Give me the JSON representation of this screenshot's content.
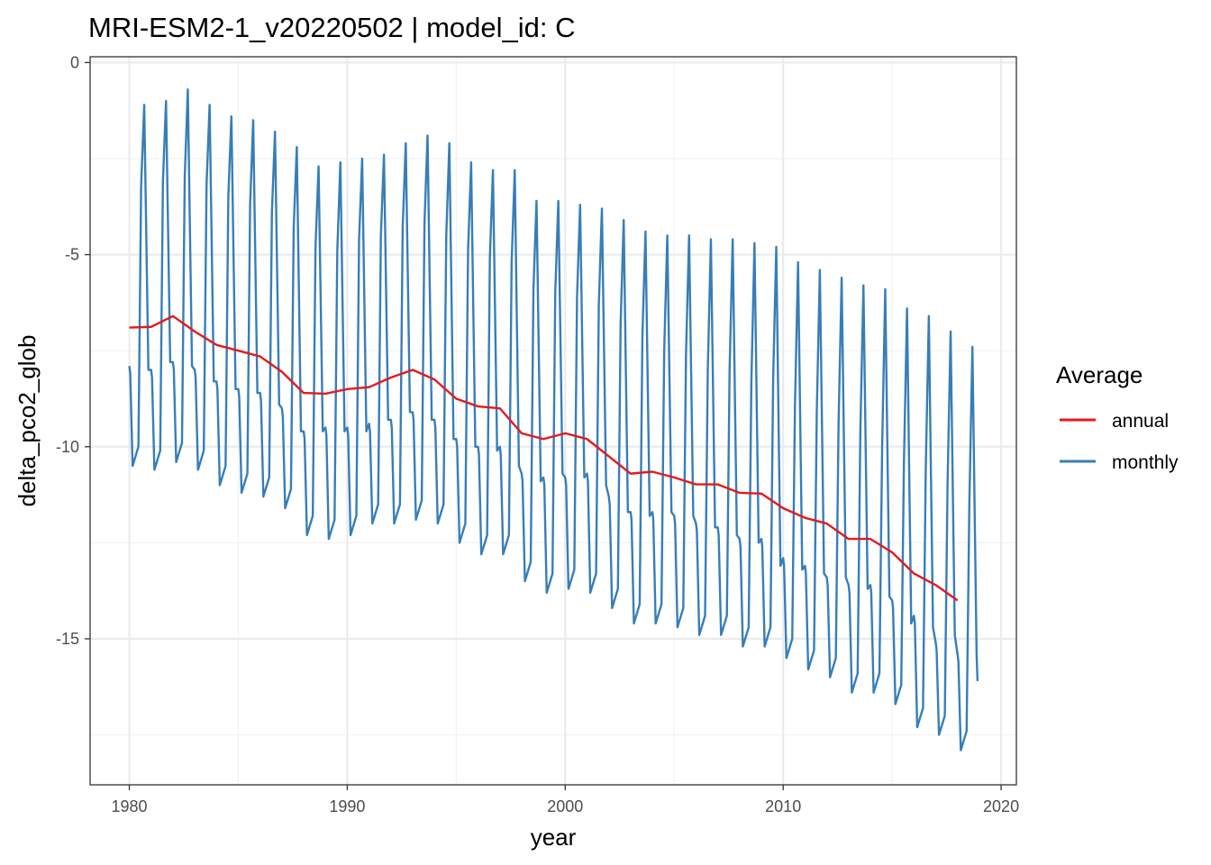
{
  "chart_data": {
    "type": "line",
    "title": "MRI-ESM2-1_v20220502 | model_id: C",
    "xlabel": "year",
    "ylabel": "delta_pco2_glob",
    "xlim": [
      1978.2,
      2020.7
    ],
    "ylim": [
      -18.8,
      0.15
    ],
    "x_ticks": [
      1980,
      1990,
      2000,
      2010,
      2020
    ],
    "y_ticks": [
      0,
      -5,
      -10,
      -15
    ],
    "x_tick_labels": [
      "1980",
      "1990",
      "2000",
      "2010",
      "2020"
    ],
    "y_tick_labels": [
      "0",
      "-5",
      "-10",
      "-15"
    ],
    "grid": true,
    "legend": {
      "title": "Average",
      "position": "right",
      "entries": [
        {
          "label": "annual",
          "color": "#e41a1c"
        },
        {
          "label": "monthly",
          "color": "#377eb8"
        }
      ]
    },
    "series": [
      {
        "name": "annual",
        "color": "#e41a1c",
        "x": [
          1980,
          1981,
          1982,
          1983,
          1984,
          1985,
          1986,
          1987,
          1988,
          1989,
          1990,
          1991,
          1992,
          1993,
          1994,
          1995,
          1996,
          1997,
          1998,
          1999,
          2000,
          2001,
          2002,
          2003,
          2004,
          2005,
          2006,
          2007,
          2008,
          2009,
          2010,
          2011,
          2012,
          2013,
          2014,
          2015,
          2016,
          2017,
          2018
        ],
        "y": [
          -6.9,
          -6.88,
          -6.6,
          -7.0,
          -7.35,
          -7.5,
          -7.65,
          -8.05,
          -8.6,
          -8.62,
          -8.5,
          -8.45,
          -8.2,
          -8.0,
          -8.25,
          -8.75,
          -8.95,
          -9.0,
          -9.65,
          -9.8,
          -9.65,
          -9.8,
          -10.25,
          -10.7,
          -10.65,
          -10.8,
          -10.98,
          -10.98,
          -11.2,
          -11.22,
          -11.6,
          -11.85,
          -12.0,
          -12.4,
          -12.4,
          -12.75,
          -13.3,
          -13.6,
          -14.0
        ]
      },
      {
        "name": "monthly",
        "color": "#377eb8",
        "start_year": 1980,
        "months_per_year": 12,
        "yearly": [
          [
            -7.9,
            -10.5,
            -3.2,
            -1.1,
            -8.0
          ],
          [
            -8.0,
            -10.6,
            -3.1,
            -1.0,
            -7.8
          ],
          [
            -7.8,
            -10.4,
            -3.0,
            -0.7,
            -7.9
          ],
          [
            -8.0,
            -10.6,
            -3.2,
            -1.1,
            -8.3
          ],
          [
            -8.3,
            -11.0,
            -3.5,
            -1.4,
            -8.5
          ],
          [
            -8.5,
            -11.2,
            -3.7,
            -1.5,
            -8.6
          ],
          [
            -8.6,
            -11.3,
            -3.9,
            -1.8,
            -8.9
          ],
          [
            -9.0,
            -11.6,
            -4.3,
            -2.2,
            -9.6
          ],
          [
            -9.6,
            -12.3,
            -4.8,
            -2.7,
            -9.6
          ],
          [
            -9.5,
            -12.4,
            -4.9,
            -2.6,
            -9.6
          ],
          [
            -9.5,
            -12.3,
            -4.6,
            -2.5,
            -9.6
          ],
          [
            -9.4,
            -12.0,
            -4.5,
            -2.4,
            -9.3
          ],
          [
            -9.3,
            -12.0,
            -4.3,
            -2.1,
            -9.1
          ],
          [
            -9.1,
            -11.9,
            -4.2,
            -1.9,
            -9.3
          ],
          [
            -9.3,
            -12.0,
            -4.5,
            -2.1,
            -9.8
          ],
          [
            -9.8,
            -12.5,
            -4.9,
            -2.6,
            -10.0
          ],
          [
            -10.0,
            -12.8,
            -5.1,
            -2.8,
            -10.1
          ],
          [
            -10.0,
            -12.8,
            -5.2,
            -2.8,
            -10.5
          ],
          [
            -10.7,
            -13.5,
            -5.9,
            -3.6,
            -10.9
          ],
          [
            -10.8,
            -13.8,
            -6.0,
            -3.6,
            -10.7
          ],
          [
            -10.8,
            -13.7,
            -6.1,
            -3.7,
            -10.8
          ],
          [
            -10.7,
            -13.8,
            -6.3,
            -3.8,
            -11.0
          ],
          [
            -11.3,
            -14.2,
            -6.8,
            -4.1,
            -11.7
          ],
          [
            -11.7,
            -14.6,
            -7.1,
            -4.4,
            -11.8
          ],
          [
            -11.7,
            -14.6,
            -7.5,
            -4.5,
            -11.7
          ],
          [
            -11.8,
            -14.7,
            -7.6,
            -4.5,
            -11.8
          ],
          [
            -12.0,
            -14.9,
            -8.0,
            -4.6,
            -12.1
          ],
          [
            -12.1,
            -14.9,
            -8.0,
            -4.6,
            -12.3
          ],
          [
            -12.4,
            -15.2,
            -8.3,
            -4.7,
            -12.5
          ],
          [
            -12.4,
            -15.2,
            -8.2,
            -4.8,
            -13.1
          ],
          [
            -12.9,
            -15.5,
            -8.9,
            -5.2,
            -13.2
          ],
          [
            -13.1,
            -15.8,
            -9.1,
            -5.4,
            -13.3
          ],
          [
            -13.4,
            -16.0,
            -9.4,
            -5.6,
            -13.4
          ],
          [
            -13.6,
            -16.4,
            -9.6,
            -5.8,
            -13.7
          ],
          [
            -13.6,
            -16.4,
            -10.0,
            -5.9,
            -13.9
          ],
          [
            -14.0,
            -16.7,
            -10.4,
            -6.4,
            -14.6
          ],
          [
            -14.4,
            -17.3,
            -10.6,
            -6.6,
            -14.7
          ],
          [
            -15.1,
            -17.5,
            -11.0,
            -7.0,
            -14.9
          ],
          [
            -15.4,
            -17.9,
            -11.5,
            -7.4,
            -15.4
          ]
        ],
        "end_value": -16.1
      }
    ]
  }
}
